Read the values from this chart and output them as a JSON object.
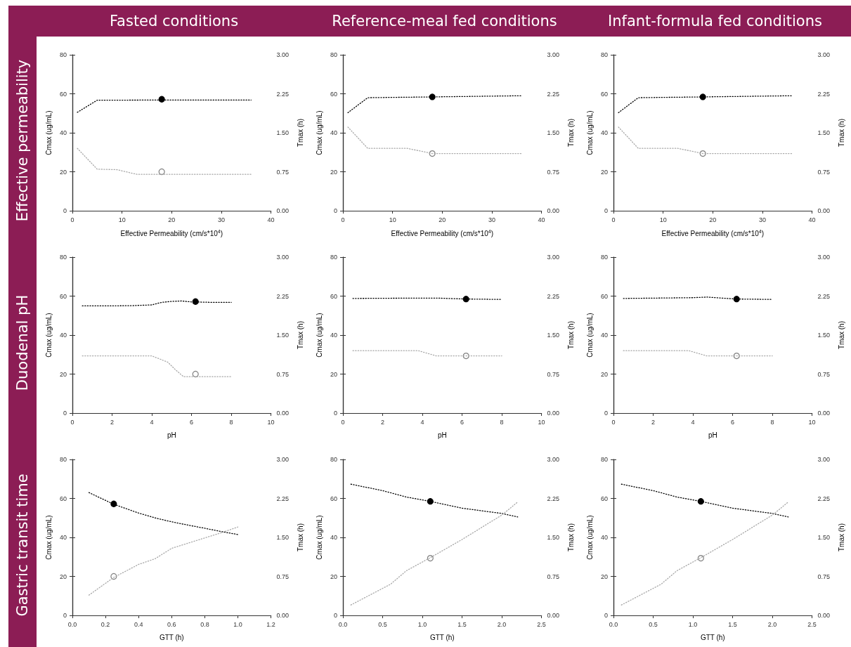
{
  "chart_data": [
    {
      "type": "line",
      "title": "Fasted conditions",
      "annotations": [
        "Effective  permeability"
      ],
      "xlabel": "Effective Permeability (cm/s*10$^{4}$)",
      "ylabel": "Cmax (ug/mL)",
      "y2label": "Tmax (h)",
      "xlim": [
        0,
        40
      ],
      "xticks": [
        0,
        10,
        20,
        30,
        40
      ],
      "ylim": [
        0,
        80
      ],
      "yticks": [
        0,
        20,
        40,
        60,
        80
      ],
      "y2lim": [
        0,
        3
      ],
      "y2ticks": [
        {
          "value": 0,
          "label": "0.00"
        },
        {
          "value": 0.75,
          "label": "0.75"
        },
        {
          "value": 1.5,
          "label": "1.50"
        },
        {
          "value": 2.25,
          "label": "2.25"
        },
        {
          "value": 3,
          "label": "3.00"
        }
      ],
      "line_style": "dotted",
      "marker": "none",
      "series": [
        {
          "type": "line",
          "color": "#000000",
          "x": [
            1,
            5,
            18,
            36
          ],
          "values": [
            50.5,
            56.7,
            56.8,
            56.8
          ]
        },
        {
          "type": "line",
          "axis": "y2",
          "color": "#a8a8a8",
          "x": [
            1,
            5,
            9,
            13,
            36
          ],
          "values": [
            1.2,
            0.8,
            0.79,
            0.7,
            0.7
          ]
        },
        {
          "type": "scatter",
          "marker": "circle",
          "color": "#000000",
          "x": [
            18
          ],
          "values": [
            57.2
          ]
        },
        {
          "type": "scatter",
          "marker": "circle",
          "axis": "y2",
          "color": "#808080",
          "x": [
            18
          ],
          "values": [
            0.75
          ]
        }
      ]
    },
    {
      "type": "line",
      "title": "Reference-meal  fed conditions",
      "xlabel": "Effective Permeability (cm/s*10$^{4}$)",
      "ylabel": "Cmax (ug/mL)",
      "y2label": "Tmax (h)",
      "xlim": [
        0,
        40
      ],
      "xticks": [
        0,
        10,
        20,
        30,
        40
      ],
      "ylim": [
        0,
        80
      ],
      "yticks": [
        0,
        20,
        40,
        60,
        80
      ],
      "y2lim": [
        0,
        3
      ],
      "y2ticks": [
        {
          "value": 0,
          "label": "0.00"
        },
        {
          "value": 0.75,
          "label": "0.75"
        },
        {
          "value": 1.5,
          "label": "1.50"
        },
        {
          "value": 2.25,
          "label": "2.25"
        },
        {
          "value": 3,
          "label": "3.00"
        }
      ],
      "line_style": "dotted",
      "marker": "none",
      "series": [
        {
          "type": "line",
          "color": "#000000",
          "x": [
            1,
            5,
            18,
            36
          ],
          "values": [
            50.3,
            58,
            58.4,
            59
          ]
        },
        {
          "type": "line",
          "axis": "y2",
          "color": "#a8a8a8",
          "x": [
            1,
            5,
            13,
            18,
            36
          ],
          "values": [
            1.61,
            1.2,
            1.2,
            1.1,
            1.1
          ]
        },
        {
          "type": "scatter",
          "marker": "circle",
          "color": "#000000",
          "x": [
            18
          ],
          "values": [
            58.4
          ]
        },
        {
          "type": "scatter",
          "marker": "circle",
          "axis": "y2",
          "color": "#808080",
          "x": [
            18
          ],
          "values": [
            1.1
          ]
        }
      ]
    },
    {
      "type": "line",
      "title": "Infant-formula fed conditions",
      "xlabel": "Effective Permeability (cm/s*10$^{4}$)",
      "ylabel": "Cmax (ug/mL)",
      "y2label": "Tmax (h)",
      "xlim": [
        0,
        40
      ],
      "xticks": [
        0,
        10,
        20,
        30,
        40
      ],
      "ylim": [
        0,
        80
      ],
      "yticks": [
        0,
        20,
        40,
        60,
        80
      ],
      "y2lim": [
        0,
        3
      ],
      "y2ticks": [
        {
          "value": 0,
          "label": "0.00"
        },
        {
          "value": 0.75,
          "label": "0.75"
        },
        {
          "value": 1.5,
          "label": "1.50"
        },
        {
          "value": 2.25,
          "label": "2.25"
        },
        {
          "value": 3,
          "label": "3.00"
        }
      ],
      "line_style": "dotted",
      "marker": "none",
      "series": [
        {
          "type": "line",
          "color": "#000000",
          "x": [
            1,
            5,
            18,
            36
          ],
          "values": [
            50.3,
            58,
            58.4,
            59
          ]
        },
        {
          "type": "line",
          "axis": "y2",
          "color": "#a8a8a8",
          "x": [
            1,
            5,
            13,
            18,
            36
          ],
          "values": [
            1.61,
            1.2,
            1.2,
            1.1,
            1.1
          ]
        },
        {
          "type": "scatter",
          "marker": "circle",
          "color": "#000000",
          "x": [
            18
          ],
          "values": [
            58.4
          ]
        },
        {
          "type": "scatter",
          "marker": "circle",
          "axis": "y2",
          "color": "#808080",
          "x": [
            18
          ],
          "values": [
            1.1
          ]
        }
      ]
    },
    {
      "type": "line",
      "annotations": [
        "Duodenal pH"
      ],
      "xlabel": "pH",
      "ylabel": "Cmax (ug/mL)",
      "y2label": "Tmax (h)",
      "xlim": [
        0,
        10
      ],
      "xticks": [
        0,
        2,
        4,
        6,
        8,
        10
      ],
      "ylim": [
        0,
        80
      ],
      "yticks": [
        0,
        20,
        40,
        60,
        80
      ],
      "y2lim": [
        0,
        3
      ],
      "y2ticks": [
        {
          "value": 0,
          "label": "0.00"
        },
        {
          "value": 0.75,
          "label": "0.75"
        },
        {
          "value": 1.5,
          "label": "1.50"
        },
        {
          "value": 2.25,
          "label": "2.25"
        },
        {
          "value": 3,
          "label": "3.00"
        }
      ],
      "line_style": "dotted",
      "marker": "none",
      "series": [
        {
          "type": "line",
          "color": "#000000",
          "x": [
            0.5,
            2,
            3,
            4,
            4.5,
            5,
            5.5,
            6,
            6.2,
            7,
            8
          ],
          "values": [
            55,
            55,
            55.1,
            55.5,
            56.8,
            57.3,
            57.5,
            57,
            57,
            56.8,
            56.8
          ]
        },
        {
          "type": "line",
          "axis": "y2",
          "color": "#a8a8a8",
          "x": [
            0.5,
            4,
            4.8,
            5.2,
            5.6,
            8
          ],
          "values": [
            1.1,
            1.1,
            0.98,
            0.83,
            0.7,
            0.7
          ]
        },
        {
          "type": "scatter",
          "marker": "circle",
          "color": "#000000",
          "x": [
            6.2
          ],
          "values": [
            57.2
          ]
        },
        {
          "type": "scatter",
          "marker": "circle",
          "axis": "y2",
          "color": "#808080",
          "x": [
            6.2
          ],
          "values": [
            0.75
          ]
        }
      ]
    },
    {
      "type": "line",
      "xlabel": "pH",
      "ylabel": "Cmax (ug/mL)",
      "y2label": "Tmax (h)",
      "xlim": [
        0,
        10
      ],
      "xticks": [
        0,
        2,
        4,
        6,
        8,
        10
      ],
      "ylim": [
        0,
        80
      ],
      "yticks": [
        0,
        20,
        40,
        60,
        80
      ],
      "y2lim": [
        0,
        3
      ],
      "y2ticks": [
        {
          "value": 0,
          "label": "0.00"
        },
        {
          "value": 0.75,
          "label": "0.75"
        },
        {
          "value": 1.5,
          "label": "1.50"
        },
        {
          "value": 2.25,
          "label": "2.25"
        },
        {
          "value": 3,
          "label": "3.00"
        }
      ],
      "line_style": "dotted",
      "marker": "none",
      "series": [
        {
          "type": "line",
          "color": "#000000",
          "x": [
            0.5,
            4,
            4.7,
            6.2,
            8
          ],
          "values": [
            58.8,
            59,
            59,
            58.5,
            58.3
          ]
        },
        {
          "type": "line",
          "axis": "y2",
          "color": "#a8a8a8",
          "x": [
            0.5,
            3.8,
            4.7,
            8
          ],
          "values": [
            1.2,
            1.2,
            1.1,
            1.1
          ]
        },
        {
          "type": "scatter",
          "marker": "circle",
          "color": "#000000",
          "x": [
            6.2
          ],
          "values": [
            58.5
          ]
        },
        {
          "type": "scatter",
          "marker": "circle",
          "axis": "y2",
          "color": "#808080",
          "x": [
            6.2
          ],
          "values": [
            1.1
          ]
        }
      ]
    },
    {
      "type": "line",
      "xlabel": "pH",
      "ylabel": "Cmax (ug/mL)",
      "y2label": "Tmax (h)",
      "xlim": [
        0,
        10
      ],
      "xticks": [
        0,
        2,
        4,
        6,
        8,
        10
      ],
      "ylim": [
        0,
        80
      ],
      "yticks": [
        0,
        20,
        40,
        60,
        80
      ],
      "y2lim": [
        0,
        3
      ],
      "y2ticks": [
        {
          "value": 0,
          "label": "0.00"
        },
        {
          "value": 0.75,
          "label": "0.75"
        },
        {
          "value": 1.5,
          "label": "1.50"
        },
        {
          "value": 2.25,
          "label": "2.25"
        },
        {
          "value": 3,
          "label": "3.00"
        }
      ],
      "line_style": "dotted",
      "marker": "none",
      "series": [
        {
          "type": "line",
          "color": "#000000",
          "x": [
            0.5,
            4,
            4.7,
            6.2,
            8
          ],
          "values": [
            58.8,
            59.2,
            59.5,
            58.5,
            58.3
          ]
        },
        {
          "type": "line",
          "axis": "y2",
          "color": "#a8a8a8",
          "x": [
            0.5,
            3.8,
            4.7,
            8
          ],
          "values": [
            1.2,
            1.2,
            1.1,
            1.1
          ]
        },
        {
          "type": "scatter",
          "marker": "circle",
          "color": "#000000",
          "x": [
            6.2
          ],
          "values": [
            58.5
          ]
        },
        {
          "type": "scatter",
          "marker": "circle",
          "axis": "y2",
          "color": "#808080",
          "x": [
            6.2
          ],
          "values": [
            1.1
          ]
        }
      ]
    },
    {
      "type": "line",
      "annotations": [
        "Gastric transit time"
      ],
      "xlabel": "GTT (h)",
      "ylabel": "Cmax (ug/mL)",
      "y2label": "Tmax (h)",
      "xlim": [
        0,
        1.2
      ],
      "xticks": [
        {
          "value": 0,
          "label": "0.0"
        },
        0.2,
        0.4,
        0.6,
        0.8,
        {
          "value": 1,
          "label": "1.0"
        },
        1.2
      ],
      "ylim": [
        0,
        80
      ],
      "yticks": [
        0,
        20,
        40,
        60,
        80
      ],
      "y2lim": [
        0,
        3
      ],
      "y2ticks": [
        {
          "value": 0,
          "label": "0.00"
        },
        {
          "value": 0.75,
          "label": "0.75"
        },
        {
          "value": 1.5,
          "label": "1.50"
        },
        {
          "value": 2.25,
          "label": "2.25"
        },
        {
          "value": 3,
          "label": "3.00"
        }
      ],
      "line_style": "dotted",
      "marker": "none",
      "series": [
        {
          "type": "line",
          "color": "#000000",
          "x": [
            0.1,
            0.25,
            0.4,
            0.5,
            0.6,
            0.7,
            0.8,
            0.9,
            1
          ],
          "values": [
            63,
            57,
            52.5,
            50,
            48,
            46.3,
            44.7,
            43,
            41.5
          ]
        },
        {
          "type": "line",
          "axis": "y2",
          "color": "#a8a8a8",
          "x": [
            0.1,
            0.25,
            0.4,
            0.5,
            0.6,
            0.7,
            0.8,
            0.9,
            1
          ],
          "values": [
            0.39,
            0.73,
            0.98,
            1.09,
            1.29,
            1.39,
            1.49,
            1.59,
            1.7
          ]
        },
        {
          "type": "scatter",
          "marker": "circle",
          "color": "#000000",
          "x": [
            0.25
          ],
          "values": [
            57.2
          ]
        },
        {
          "type": "scatter",
          "marker": "circle",
          "axis": "y2",
          "color": "#808080",
          "x": [
            0.25
          ],
          "values": [
            0.75
          ]
        }
      ]
    },
    {
      "type": "line",
      "xlabel": "GTT (h)",
      "ylabel": "Cmax (ug/mL)",
      "y2label": "Tmax (h)",
      "xlim": [
        0,
        2.5
      ],
      "xticks": [
        {
          "value": 0,
          "label": "0.0"
        },
        0.5,
        {
          "value": 1,
          "label": "1.0"
        },
        1.5,
        {
          "value": 2,
          "label": "2.0"
        },
        2.5
      ],
      "ylim": [
        0,
        80
      ],
      "yticks": [
        0,
        20,
        40,
        60,
        80
      ],
      "y2lim": [
        0,
        3
      ],
      "y2ticks": [
        {
          "value": 0,
          "label": "0.00"
        },
        {
          "value": 0.75,
          "label": "0.75"
        },
        {
          "value": 1.5,
          "label": "1.50"
        },
        {
          "value": 2.25,
          "label": "2.25"
        },
        {
          "value": 3,
          "label": "3.00"
        }
      ],
      "line_style": "dotted",
      "marker": "none",
      "series": [
        {
          "type": "line",
          "color": "#000000",
          "x": [
            0.1,
            0.5,
            0.8,
            1.1,
            1.5,
            2,
            2.2
          ],
          "values": [
            67.3,
            64,
            60.7,
            58.5,
            55,
            52.3,
            50.5
          ]
        },
        {
          "type": "line",
          "axis": "y2",
          "color": "#a8a8a8",
          "x": [
            0.1,
            0.6,
            0.8,
            1.1,
            1.5,
            2,
            2.2
          ],
          "values": [
            0.2,
            0.6,
            0.86,
            1.11,
            1.46,
            1.93,
            2.18
          ]
        },
        {
          "type": "scatter",
          "marker": "circle",
          "color": "#000000",
          "x": [
            1.1
          ],
          "values": [
            58.5
          ]
        },
        {
          "type": "scatter",
          "marker": "circle",
          "axis": "y2",
          "color": "#808080",
          "x": [
            1.1
          ],
          "values": [
            1.1
          ]
        }
      ]
    },
    {
      "type": "line",
      "xlabel": "GTT (h)",
      "ylabel": "Cmax (ug/mL)",
      "y2label": "Tmax (h)",
      "xlim": [
        0,
        2.5
      ],
      "xticks": [
        {
          "value": 0,
          "label": "0.0"
        },
        0.5,
        {
          "value": 1,
          "label": "1.0"
        },
        1.5,
        {
          "value": 2,
          "label": "2.0"
        },
        2.5
      ],
      "ylim": [
        0,
        80
      ],
      "yticks": [
        0,
        20,
        40,
        60,
        80
      ],
      "y2lim": [
        0,
        3
      ],
      "y2ticks": [
        {
          "value": 0,
          "label": "0.00"
        },
        {
          "value": 0.75,
          "label": "0.75"
        },
        {
          "value": 1.5,
          "label": "1.50"
        },
        {
          "value": 2.25,
          "label": "2.25"
        },
        {
          "value": 3,
          "label": "3.00"
        }
      ],
      "line_style": "dotted",
      "marker": "none",
      "series": [
        {
          "type": "line",
          "color": "#000000",
          "x": [
            0.1,
            0.5,
            0.8,
            1.1,
            1.5,
            2,
            2.2
          ],
          "values": [
            67.3,
            64,
            60.7,
            58.5,
            55,
            52.3,
            50.5
          ]
        },
        {
          "type": "line",
          "axis": "y2",
          "color": "#a8a8a8",
          "x": [
            0.1,
            0.6,
            0.8,
            1.1,
            1.5,
            2,
            2.2
          ],
          "values": [
            0.2,
            0.6,
            0.86,
            1.11,
            1.46,
            1.93,
            2.18
          ]
        },
        {
          "type": "scatter",
          "marker": "circle",
          "color": "#000000",
          "x": [
            1.1
          ],
          "values": [
            58.5
          ]
        },
        {
          "type": "scatter",
          "marker": "circle",
          "axis": "y2",
          "color": "#808080",
          "x": [
            1.1
          ],
          "values": [
            1.1
          ]
        }
      ]
    }
  ]
}
